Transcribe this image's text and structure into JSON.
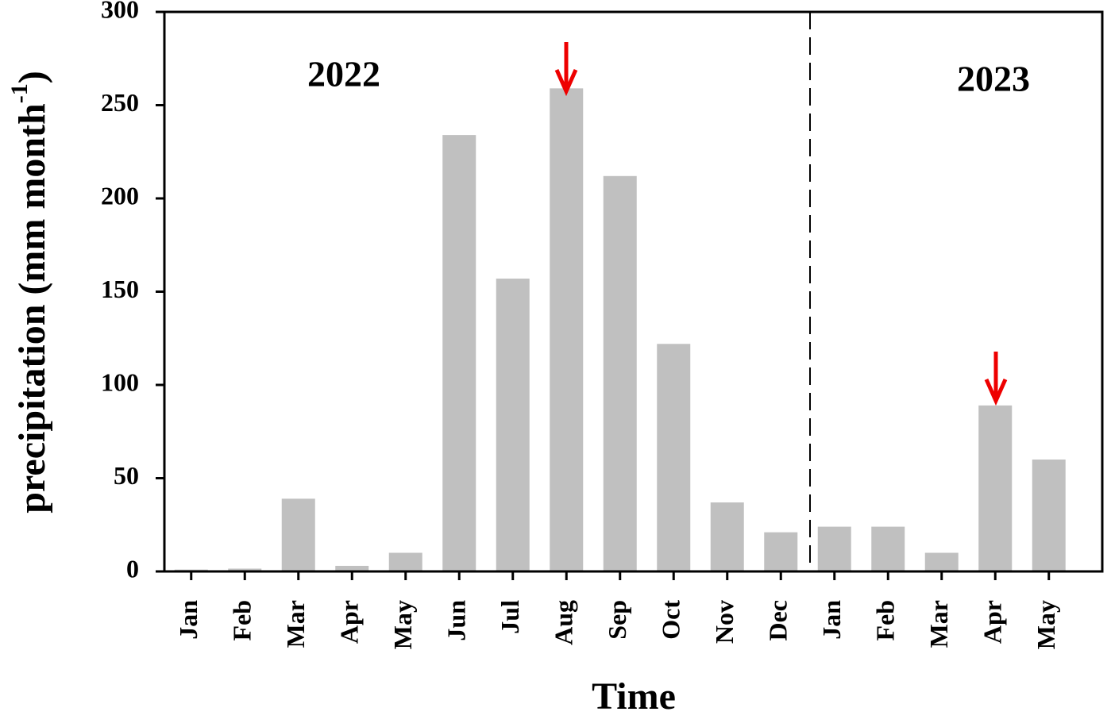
{
  "chart_data": {
    "type": "bar",
    "xlabel": "Time",
    "ylabel": {
      "text": "precipitation (mm month",
      "superscript": "-1",
      "close": ")"
    },
    "annotations": [
      "2022",
      "2023"
    ],
    "categories": [
      "Jan",
      "Feb",
      "Mar",
      "Apr",
      "May",
      "Jun",
      "Jul",
      "Aug",
      "Sep",
      "Oct",
      "Nov",
      "Dec",
      "Jan",
      "Feb",
      "Mar",
      "Apr",
      "May"
    ],
    "values": [
      1,
      1.5,
      39,
      3,
      10,
      234,
      157,
      259,
      212,
      122,
      37,
      21,
      24,
      24,
      10,
      89,
      60
    ],
    "color": "#c0c0c0",
    "ylim": [
      0,
      300
    ],
    "yticks": [
      0,
      50,
      100,
      150,
      200,
      250,
      300
    ],
    "grid": false
  }
}
